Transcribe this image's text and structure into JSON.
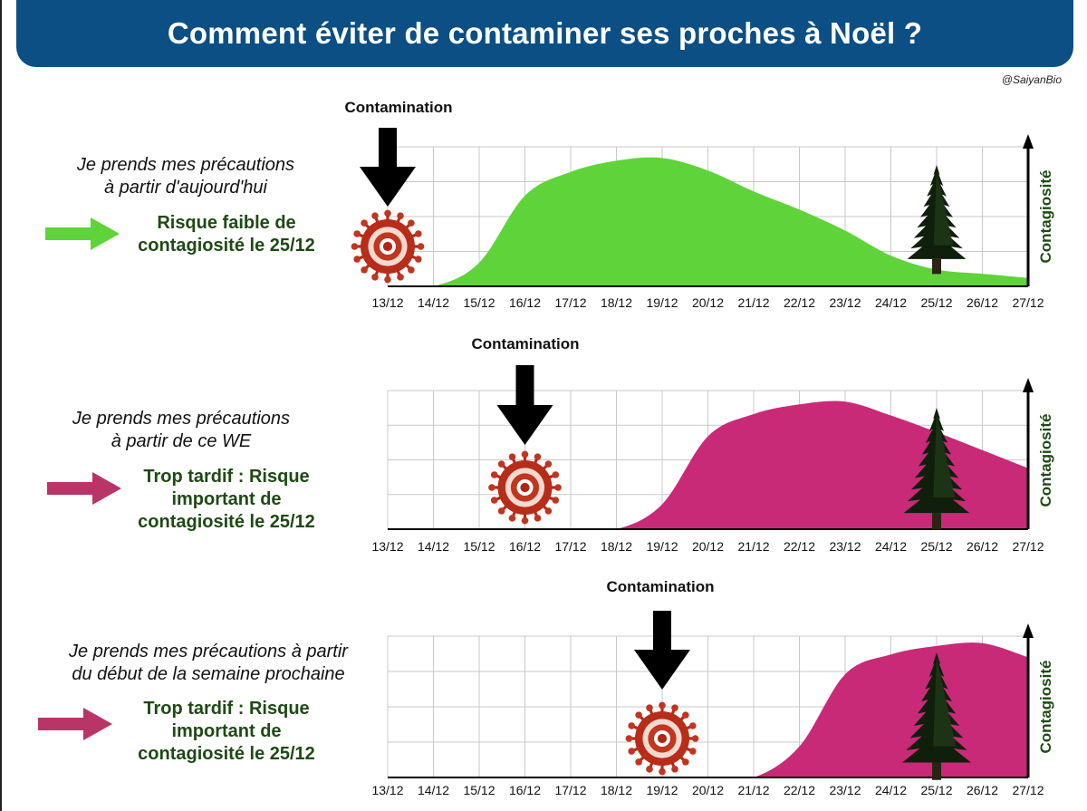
{
  "title": "Comment éviter de contaminer ses proches à Noël ?",
  "credit": "@SaiyanBio",
  "colors": {
    "title_bg": "#0b4f84",
    "green": "#5fd43a",
    "magenta": "#c82a78",
    "arrow_magenta": "#b83568",
    "risk_text": "#1e4a14"
  },
  "chart_data": [
    {
      "type": "area",
      "x": [
        "13/12",
        "14/12",
        "15/12",
        "16/12",
        "17/12",
        "18/12",
        "19/12",
        "20/12",
        "21/12",
        "22/12",
        "23/12",
        "24/12",
        "25/12",
        "26/12",
        "27/12"
      ],
      "y_label": "Contagiosité",
      "contamination_label": "Contamination",
      "contamination_date": "13/12",
      "christmas_date": "25/12",
      "color": "#5fd43a",
      "series": [
        {
          "values": [
            0,
            0,
            0.17,
            0.65,
            0.82,
            0.9,
            0.92,
            0.83,
            0.68,
            0.55,
            0.4,
            0.22,
            0.12,
            0.09,
            0.06
          ]
        }
      ],
      "precaution_text": [
        "Je prends mes précautions",
        "à partir d'aujourd'hui"
      ],
      "risk_text": [
        "Risque faible de",
        "contagiosité le 25/12"
      ],
      "arrow_icon": "green-right-arrow-icon"
    },
    {
      "type": "area",
      "x": [
        "13/12",
        "14/12",
        "15/12",
        "16/12",
        "17/12",
        "18/12",
        "19/12",
        "20/12",
        "21/12",
        "22/12",
        "23/12",
        "24/12",
        "25/12",
        "26/12",
        "27/12"
      ],
      "y_label": "Contagiosité",
      "contamination_label": "Contamination",
      "contamination_date": "16/12",
      "christmas_date": "25/12",
      "color": "#c82a78",
      "series": [
        {
          "values": [
            0,
            0,
            0,
            0,
            0,
            0,
            0.18,
            0.67,
            0.83,
            0.9,
            0.92,
            0.82,
            0.7,
            0.57,
            0.44
          ]
        }
      ],
      "precaution_text": [
        "Je prends mes précautions",
        "à partir de ce WE"
      ],
      "risk_text": [
        "Trop tardif : Risque",
        "important de",
        "contagiosité le 25/12"
      ],
      "arrow_icon": "magenta-right-arrow-icon"
    },
    {
      "type": "area",
      "x": [
        "13/12",
        "14/12",
        "15/12",
        "16/12",
        "17/12",
        "18/12",
        "19/12",
        "20/12",
        "21/12",
        "22/12",
        "23/12",
        "24/12",
        "25/12",
        "26/12",
        "27/12"
      ],
      "y_label": "Contagiosité",
      "contamination_label": "Contamination",
      "contamination_date": "19/12",
      "christmas_date": "25/12",
      "color": "#c82a78",
      "series": [
        {
          "values": [
            0,
            0,
            0,
            0,
            0,
            0,
            0,
            0,
            0,
            0.22,
            0.73,
            0.87,
            0.93,
            0.95,
            0.85
          ]
        }
      ],
      "precaution_text": [
        "Je prends mes précautions à partir",
        "du début de la semaine prochaine"
      ],
      "risk_text": [
        "Trop tardif : Risque",
        "important de",
        "contagiosité le 25/12"
      ],
      "arrow_icon": "magenta-right-arrow-icon"
    }
  ]
}
